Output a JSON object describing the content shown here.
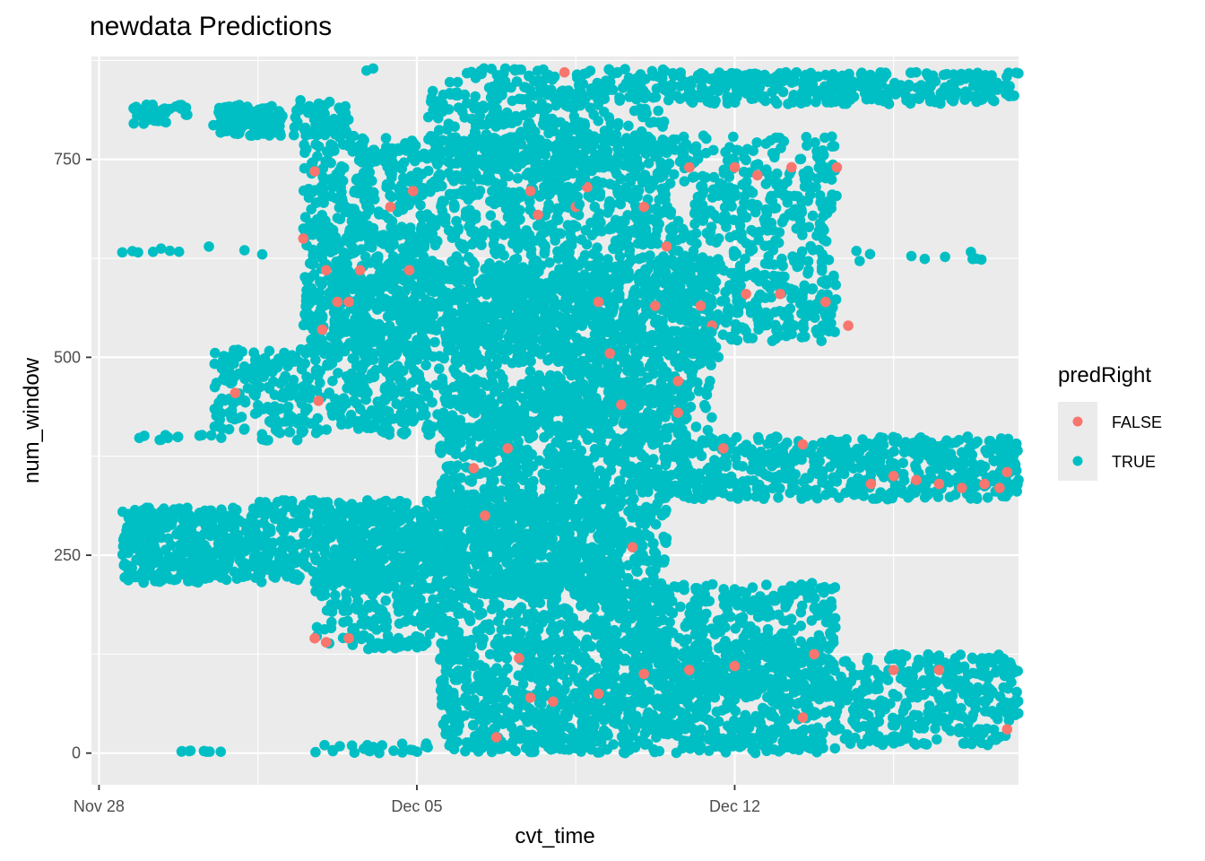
{
  "chart_data": {
    "type": "scatter",
    "title": "newdata Predictions",
    "xlabel": "cvt_time",
    "ylabel": "num_window",
    "x_axis": {
      "kind": "date",
      "ticks": [
        {
          "label": "Nov 28",
          "date": "2011-11-28"
        },
        {
          "label": "Dec 05",
          "date": "2011-12-05"
        },
        {
          "label": "Dec 12",
          "date": "2011-12-12"
        }
      ],
      "xlim": [
        "2011-11-27T20:00",
        "2011-12-18T06:00"
      ]
    },
    "y_axis": {
      "ticks": [
        0,
        250,
        500,
        750
      ],
      "ylim": [
        -40,
        880
      ]
    },
    "grid": true,
    "panel_background": "#ebebeb",
    "legend": {
      "title": "predRight",
      "placement": "right",
      "entries": [
        {
          "label": "FALSE",
          "color": "#f8766d"
        },
        {
          "label": "TRUE",
          "color": "#00bfc4"
        }
      ]
    },
    "series": [
      {
        "name": "FALSE",
        "color": "#f8766d",
        "points": [
          [
            "2011-12-02T12:00",
            650
          ],
          [
            "2011-12-02T18:00",
            735
          ],
          [
            "2011-12-03T00:00",
            610
          ],
          [
            "2011-12-03T06:00",
            570
          ],
          [
            "2011-12-02T22:00",
            535
          ],
          [
            "2011-12-03T12:00",
            570
          ],
          [
            "2011-12-03T18:00",
            610
          ],
          [
            "2011-12-04T10:00",
            690
          ],
          [
            "2011-12-04T20:00",
            610
          ],
          [
            "2011-12-04T22:00",
            710
          ],
          [
            "2011-12-01T00:00",
            455
          ],
          [
            "2011-12-02T20:00",
            445
          ],
          [
            "2011-12-03T00:00",
            140
          ],
          [
            "2011-12-03T12:00",
            145
          ],
          [
            "2011-12-02T18:00",
            145
          ],
          [
            "2011-12-06T06:00",
            360
          ],
          [
            "2011-12-06T12:00",
            300
          ],
          [
            "2011-12-07T00:00",
            385
          ],
          [
            "2011-12-07T12:00",
            710
          ],
          [
            "2011-12-07T16:00",
            680
          ],
          [
            "2011-12-08T06:00",
            860
          ],
          [
            "2011-12-08T12:00",
            690
          ],
          [
            "2011-12-08T18:00",
            715
          ],
          [
            "2011-12-09T00:00",
            570
          ],
          [
            "2011-12-09T06:00",
            505
          ],
          [
            "2011-12-09T12:00",
            440
          ],
          [
            "2011-12-09T18:00",
            260
          ],
          [
            "2011-12-10T00:00",
            690
          ],
          [
            "2011-12-10T06:00",
            565
          ],
          [
            "2011-12-10T12:00",
            640
          ],
          [
            "2011-12-10T18:00",
            470
          ],
          [
            "2011-12-11T00:00",
            740
          ],
          [
            "2011-12-11T06:00",
            565
          ],
          [
            "2011-12-11T12:00",
            540
          ],
          [
            "2011-12-11T18:00",
            385
          ],
          [
            "2011-12-12T00:00",
            740
          ],
          [
            "2011-12-12T06:00",
            580
          ],
          [
            "2011-12-12T12:00",
            730
          ],
          [
            "2011-12-13T00:00",
            580
          ],
          [
            "2011-12-13T06:00",
            740
          ],
          [
            "2011-12-14T00:00",
            570
          ],
          [
            "2011-12-14T06:00",
            740
          ],
          [
            "2011-12-14T12:00",
            540
          ],
          [
            "2011-12-13T12:00",
            390
          ],
          [
            "2011-12-15T00:00",
            340
          ],
          [
            "2011-12-15T12:00",
            350
          ],
          [
            "2011-12-16T00:00",
            345
          ],
          [
            "2011-12-16T12:00",
            340
          ],
          [
            "2011-12-17T00:00",
            335
          ],
          [
            "2011-12-17T12:00",
            340
          ],
          [
            "2011-12-18T00:00",
            355
          ],
          [
            "2011-12-17T20:00",
            335
          ],
          [
            "2011-12-07T06:00",
            120
          ],
          [
            "2011-12-07T12:00",
            70
          ],
          [
            "2011-12-08T00:00",
            65
          ],
          [
            "2011-12-09T00:00",
            75
          ],
          [
            "2011-12-10T00:00",
            100
          ],
          [
            "2011-12-11T00:00",
            105
          ],
          [
            "2011-12-12T00:00",
            110
          ],
          [
            "2011-12-13T12:00",
            45
          ],
          [
            "2011-12-13T18:00",
            125
          ],
          [
            "2011-12-15T12:00",
            105
          ],
          [
            "2011-12-16T12:00",
            105
          ],
          [
            "2011-12-18T00:00",
            30
          ],
          [
            "2011-12-06T18:00",
            20
          ],
          [
            "2011-12-10T18:00",
            430
          ]
        ]
      },
      {
        "name": "TRUE",
        "color": "#00bfc4",
        "clusters": [
          {
            "x_range": [
              "2011-11-28T18:00",
              "2011-11-29T12:00"
            ],
            "y_range": [
              795,
              820
            ],
            "n": 40
          },
          {
            "x_range": [
              "2011-11-29T12:00",
              "2011-11-30T00:00"
            ],
            "y_range": [
              805,
              820
            ],
            "n": 8
          },
          {
            "x_range": [
              "2011-11-30T12:00",
              "2011-12-02T00:00"
            ],
            "y_range": [
              780,
              820
            ],
            "n": 110
          },
          {
            "x_range": [
              "2011-12-02T00:00",
              "2011-12-03T12:00"
            ],
            "y_range": [
              780,
              825
            ],
            "n": 60
          },
          {
            "x_range": [
              "2011-12-05T06:00",
              "2011-12-10T12:00"
            ],
            "y_range": [
              740,
              865
            ],
            "n": 420
          },
          {
            "x_range": [
              "2011-12-10T12:00",
              "2011-12-18T06:00"
            ],
            "y_range": [
              820,
              860
            ],
            "n": 360
          },
          {
            "x_range": [
              "2011-12-02T12:00",
              "2011-12-12T00:00"
            ],
            "y_range": [
              500,
              780
            ],
            "n": 1700
          },
          {
            "x_range": [
              "2011-12-12T00:00",
              "2011-12-14T06:00"
            ],
            "y_range": [
              550,
              780
            ],
            "n": 280
          },
          {
            "x_range": [
              "2011-12-12T00:00",
              "2011-12-14T06:00"
            ],
            "y_range": [
              520,
              560
            ],
            "n": 60
          },
          {
            "x_range": [
              "2011-11-28T12:00",
              "2011-12-02T00:00"
            ],
            "y_range": [
              630,
              640
            ],
            "n": 10
          },
          {
            "x_range": [
              "2011-12-14T06:00",
              "2011-12-17T12:00"
            ],
            "y_range": [
              620,
              635
            ],
            "n": 10
          },
          {
            "x_range": [
              "2011-12-02T12:00",
              "2011-12-11T12:00"
            ],
            "y_range": [
              400,
              620
            ],
            "n": 1300
          },
          {
            "x_range": [
              "2011-11-30T12:00",
              "2011-12-02T12:00"
            ],
            "y_range": [
              395,
              510
            ],
            "n": 170
          },
          {
            "x_range": [
              "2011-11-28T18:00",
              "2011-11-30T12:00"
            ],
            "y_range": [
              395,
              405
            ],
            "n": 12
          },
          {
            "x_range": [
              "2011-12-05T12:00",
              "2011-12-11T00:00"
            ],
            "y_range": [
              320,
              470
            ],
            "n": 700
          },
          {
            "x_range": [
              "2011-12-10T18:00",
              "2011-12-18T06:00"
            ],
            "y_range": [
              320,
              400
            ],
            "n": 560
          },
          {
            "x_range": [
              "2011-11-28T12:00",
              "2011-12-01T12:00"
            ],
            "y_range": [
              215,
              310
            ],
            "n": 380
          },
          {
            "x_range": [
              "2011-12-01T12:00",
              "2011-12-05T12:00"
            ],
            "y_range": [
              215,
              320
            ],
            "n": 360
          },
          {
            "x_range": [
              "2011-12-02T18:00",
              "2011-12-10T12:00"
            ],
            "y_range": [
              130,
              320
            ],
            "n": 1100
          },
          {
            "x_range": [
              "2011-12-05T12:00",
              "2011-12-09T12:00"
            ],
            "y_range": [
              200,
              330
            ],
            "n": 500
          },
          {
            "x_range": [
              "2011-12-09T18:00",
              "2011-12-14T06:00"
            ],
            "y_range": [
              80,
              215
            ],
            "n": 420
          },
          {
            "x_range": [
              "2011-12-05T12:00",
              "2011-12-14T06:00"
            ],
            "y_range": [
              0,
              140
            ],
            "n": 1200
          },
          {
            "x_range": [
              "2011-12-14T06:00",
              "2011-12-18T06:00"
            ],
            "y_range": [
              10,
              125
            ],
            "n": 360
          },
          {
            "x_range": [
              "2011-11-29T12:00",
              "2011-12-01T12:00"
            ],
            "y_range": [
              0,
              5
            ],
            "n": 8
          },
          {
            "x_range": [
              "2011-12-02T18:00",
              "2011-12-05T06:00"
            ],
            "y_range": [
              0,
              12
            ],
            "n": 25
          },
          {
            "x_range": [
              "2011-12-03T18:00",
              "2011-12-05T00:00"
            ],
            "y_range": [
              860,
              865
            ],
            "n": 2
          }
        ]
      }
    ]
  }
}
